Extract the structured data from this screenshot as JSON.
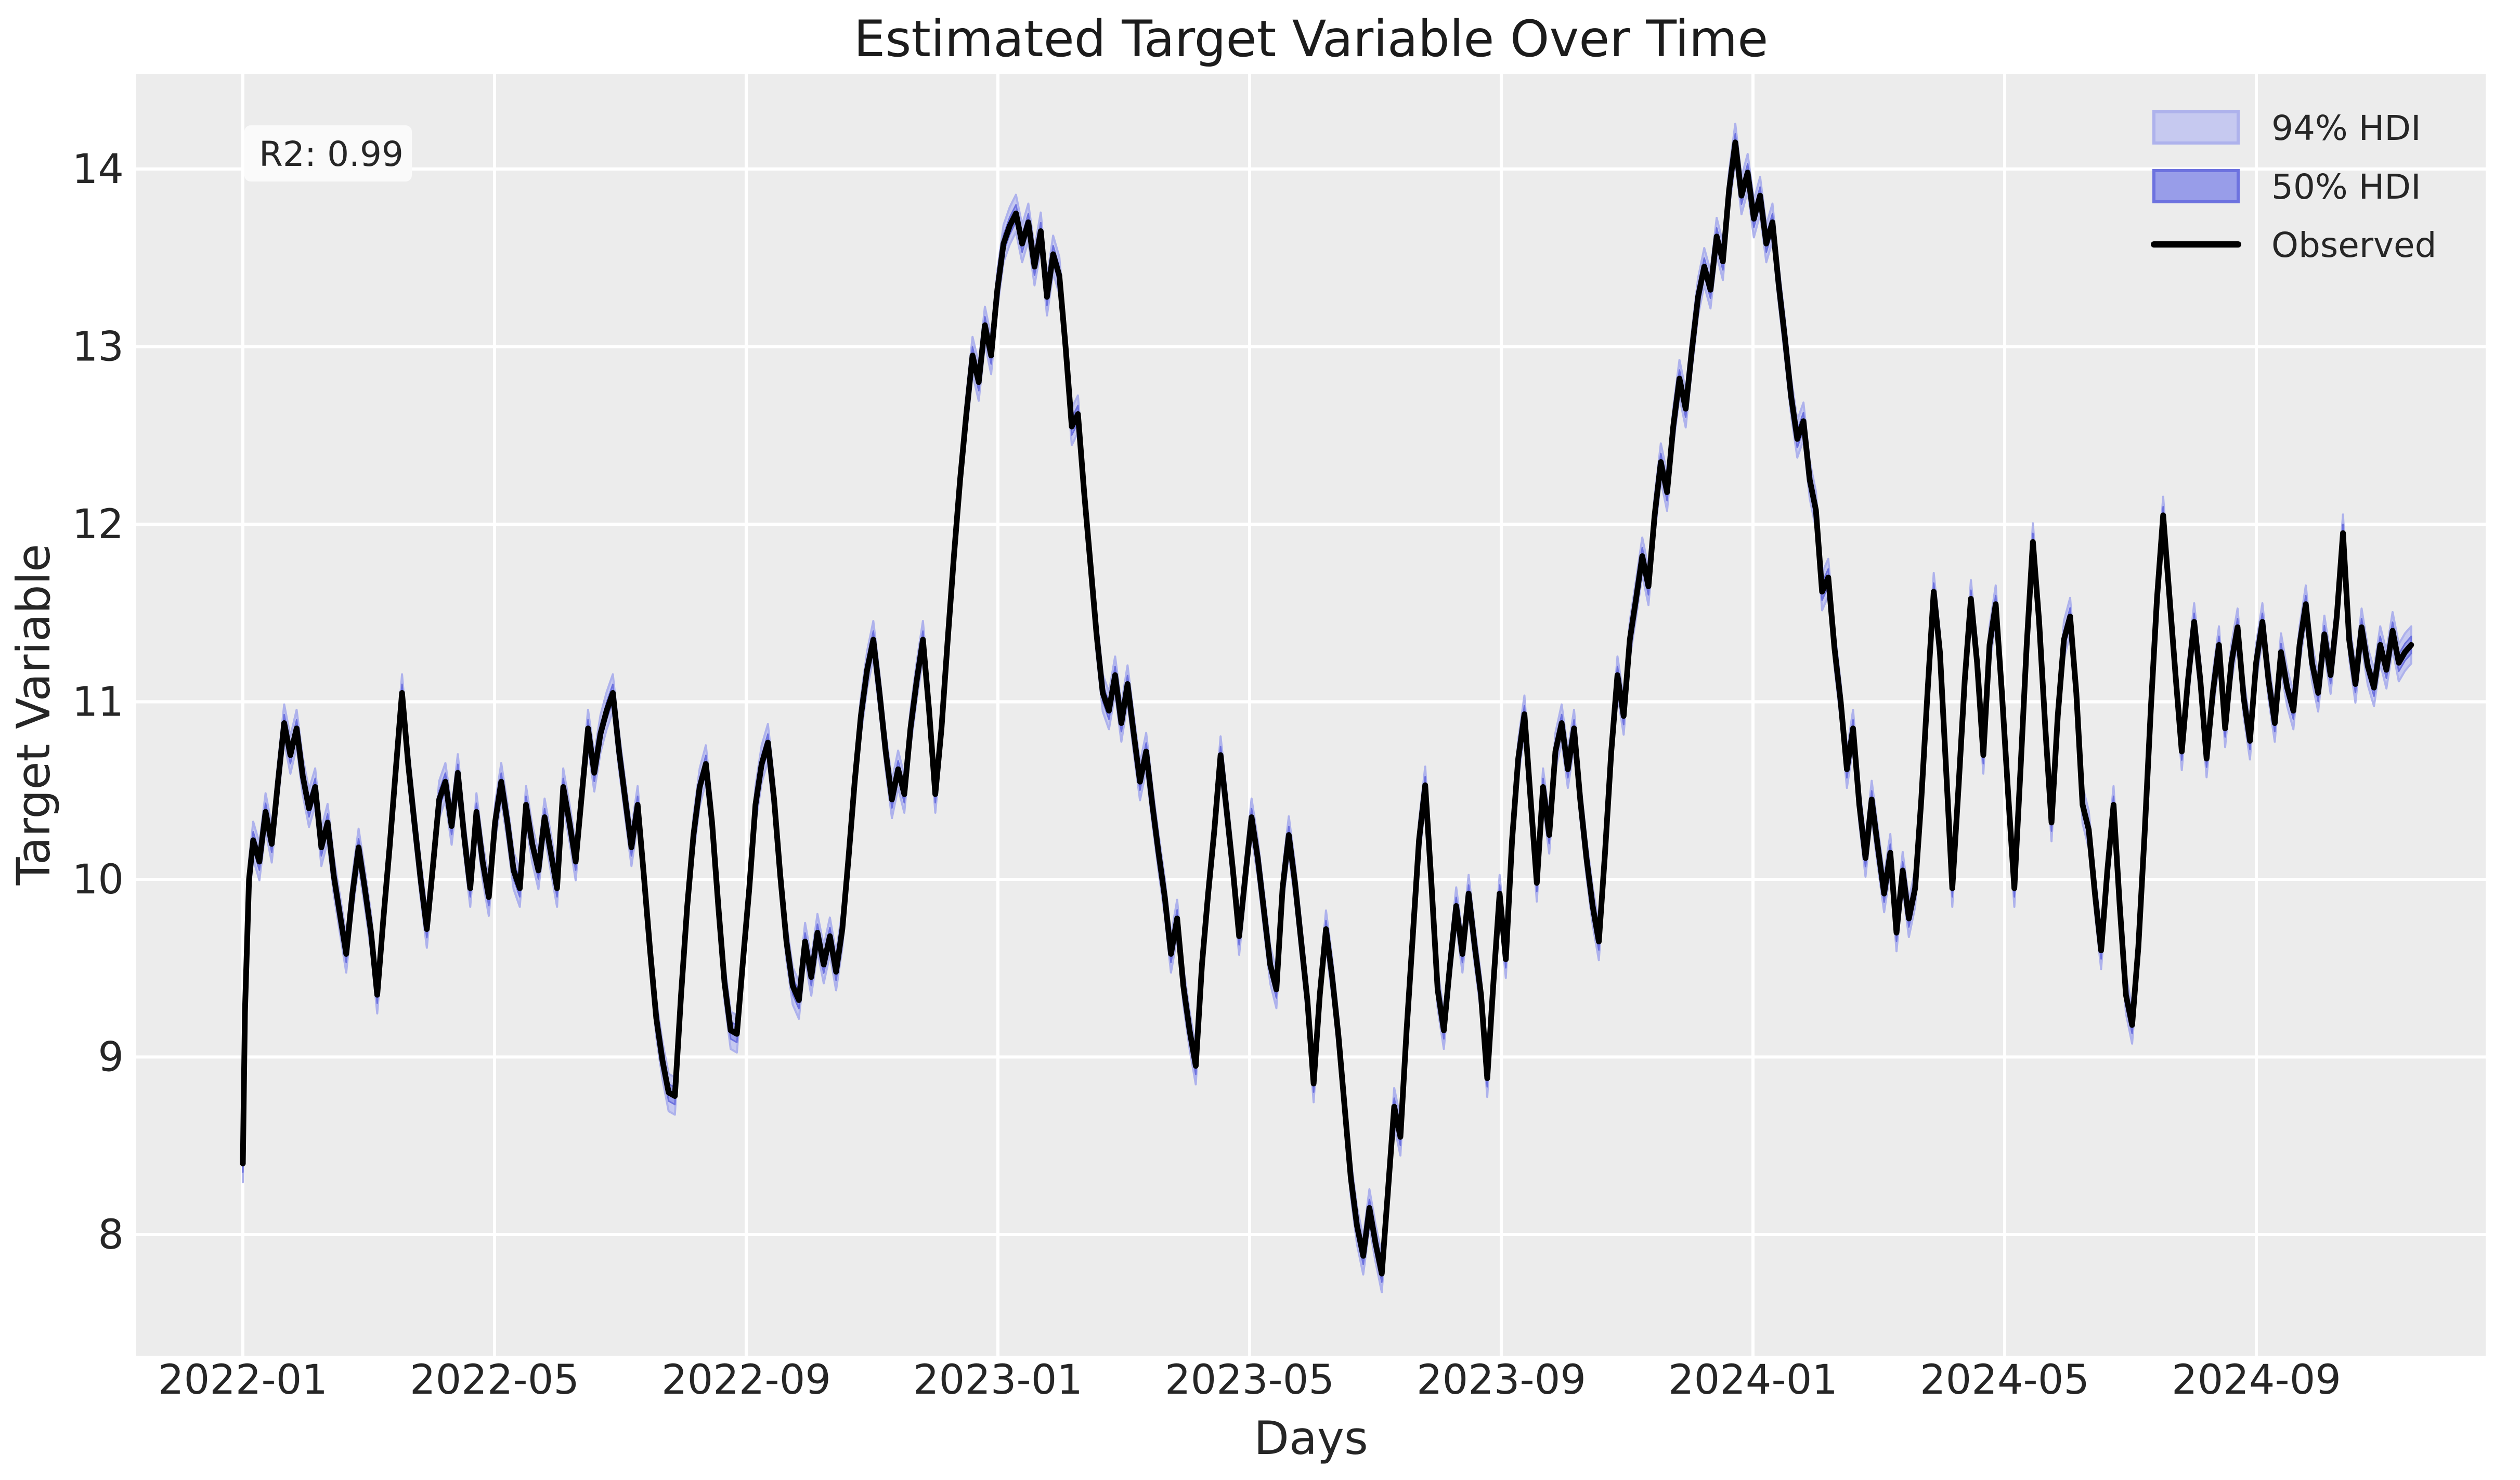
{
  "figure": {
    "title": "Estimated Target Variable Over Time",
    "xlabel": "Days",
    "ylabel": "Target Variable",
    "annotation_text": "R2: 0.99",
    "colors": {
      "figure_background": "#ffffff",
      "plot_background": "#ececec",
      "gridline": "#ffffff",
      "text": "#262626",
      "observed_line": "#000000",
      "hdi94_fill": "#c6c9f0",
      "hdi94_edge": "#aeb2ec",
      "hdi50_fill": "#989de9",
      "hdi50_edge": "#6d72df",
      "annotation_box": "#fafafa"
    }
  },
  "legend": {
    "items": [
      {
        "label": "94% HDI",
        "swatch": "patch"
      },
      {
        "label": "50% HDI",
        "swatch": "patch"
      },
      {
        "label": "Observed",
        "swatch": "line"
      }
    ]
  },
  "chart_data": {
    "type": "line",
    "title": "Estimated Target Variable Over Time",
    "xlabel": "Days",
    "ylabel": "Target Variable",
    "r_squared": 0.99,
    "grid": true,
    "legend_position": "upper right",
    "x_axis": {
      "start_date": "2022-01-01",
      "tick_labels": [
        "2022-01",
        "2022-05",
        "2022-09",
        "2023-01",
        "2023-05",
        "2023-09",
        "2024-01",
        "2024-05",
        "2024-09"
      ],
      "tick_month_offsets": [
        0,
        4,
        8,
        12,
        16,
        20,
        24,
        28,
        32
      ],
      "xlim_days": [
        -52,
        1085
      ]
    },
    "y_axis": {
      "ticks": [
        8,
        9,
        10,
        11,
        12,
        13,
        14
      ],
      "ylim": [
        7.32,
        14.54
      ]
    },
    "hdi_bands": [
      {
        "name": "94% HDI",
        "half_width": 0.105
      },
      {
        "name": "50% HDI",
        "half_width": 0.048
      }
    ],
    "series": {
      "name": "Observed",
      "x_days": [
        0,
        1,
        3,
        5,
        8,
        11,
        14,
        17,
        20,
        23,
        26,
        29,
        32,
        35,
        38,
        41,
        44,
        47,
        50,
        53,
        56,
        59,
        62,
        65,
        68,
        71,
        74,
        77,
        80,
        83,
        86,
        89,
        92,
        95,
        98,
        101,
        104,
        107,
        110,
        113,
        116,
        119,
        122,
        125,
        128,
        131,
        134,
        137,
        140,
        143,
        146,
        149,
        152,
        155,
        158,
        161,
        164,
        167,
        170,
        173,
        176,
        179,
        182,
        185,
        188,
        191,
        194,
        197,
        200,
        203,
        206,
        209,
        212,
        215,
        218,
        221,
        224,
        227,
        230,
        233,
        236,
        239,
        242,
        245,
        248,
        251,
        254,
        257,
        260,
        263,
        266,
        269,
        272,
        275,
        278,
        281,
        284,
        287,
        290,
        293,
        296,
        299,
        302,
        305,
        308,
        311,
        314,
        317,
        320,
        323,
        326,
        329,
        332,
        335,
        338,
        341,
        344,
        347,
        350,
        353,
        356,
        359,
        362,
        365,
        368,
        371,
        374,
        377,
        380,
        383,
        386,
        389,
        392,
        395,
        398,
        401,
        404,
        407,
        410,
        413,
        416,
        419,
        422,
        425,
        428,
        431,
        434,
        437,
        440,
        443,
        446,
        449,
        452,
        455,
        458,
        461,
        464,
        467,
        470,
        473,
        476,
        479,
        482,
        485,
        488,
        491,
        494,
        497,
        500,
        503,
        506,
        509,
        512,
        515,
        518,
        521,
        524,
        527,
        530,
        533,
        536,
        539,
        542,
        545,
        548,
        551,
        554,
        557,
        560,
        563,
        566,
        569,
        572,
        575,
        578,
        581,
        584,
        587,
        590,
        593,
        596,
        599,
        602,
        605,
        608,
        611,
        614,
        617,
        620,
        623,
        626,
        629,
        632,
        635,
        638,
        641,
        644,
        647,
        650,
        653,
        656,
        659,
        662,
        665,
        668,
        671,
        674,
        677,
        680,
        683,
        686,
        689,
        692,
        695,
        698,
        701,
        704,
        707,
        710,
        713,
        716,
        719,
        722,
        725,
        728,
        731,
        734,
        737,
        740,
        743,
        746,
        749,
        752,
        755,
        758,
        761,
        764,
        767,
        770,
        773,
        776,
        779,
        782,
        785,
        788,
        791,
        794,
        797,
        800,
        803,
        806,
        809,
        812,
        815,
        818,
        821,
        824,
        827,
        830,
        833,
        836,
        839,
        842,
        845,
        848,
        851,
        854,
        857,
        860,
        863,
        866,
        869,
        872,
        875,
        878,
        881,
        884,
        887,
        890,
        893,
        896,
        899,
        902,
        905,
        908,
        911,
        914,
        917,
        920,
        923,
        926,
        929,
        932,
        935,
        938,
        941,
        944,
        947,
        950,
        953,
        956,
        959,
        962,
        965,
        968,
        971,
        974,
        977,
        980,
        983,
        986,
        989,
        992,
        995,
        998,
        1001,
        1004,
        1007,
        1010,
        1013,
        1016,
        1019,
        1022,
        1025,
        1028,
        1031,
        1034,
        1037,
        1040,
        1043,
        1046,
        1049
      ],
      "y": [
        8.4,
        9.25,
        10.0,
        10.22,
        10.1,
        10.38,
        10.2,
        10.55,
        10.88,
        10.7,
        10.85,
        10.58,
        10.4,
        10.52,
        10.18,
        10.32,
        10.02,
        9.8,
        9.58,
        9.92,
        10.18,
        9.95,
        9.7,
        9.35,
        9.78,
        10.18,
        10.62,
        11.05,
        10.65,
        10.32,
        10.0,
        9.72,
        10.08,
        10.45,
        10.55,
        10.3,
        10.6,
        10.25,
        9.95,
        10.38,
        10.1,
        9.9,
        10.32,
        10.55,
        10.32,
        10.05,
        9.95,
        10.42,
        10.2,
        10.05,
        10.35,
        10.15,
        9.95,
        10.52,
        10.32,
        10.1,
        10.48,
        10.85,
        10.6,
        10.82,
        10.95,
        11.05,
        10.72,
        10.45,
        10.18,
        10.42,
        10.02,
        9.6,
        9.22,
        8.98,
        8.8,
        8.78,
        9.35,
        9.85,
        10.25,
        10.52,
        10.65,
        10.32,
        9.85,
        9.42,
        9.15,
        9.13,
        9.55,
        9.95,
        10.42,
        10.65,
        10.77,
        10.45,
        10.02,
        9.65,
        9.4,
        9.32,
        9.65,
        9.45,
        9.7,
        9.52,
        9.68,
        9.48,
        9.72,
        10.12,
        10.55,
        10.92,
        11.18,
        11.35,
        11.05,
        10.72,
        10.45,
        10.62,
        10.48,
        10.85,
        11.12,
        11.35,
        10.95,
        10.48,
        10.85,
        11.35,
        11.82,
        12.25,
        12.62,
        12.95,
        12.8,
        13.12,
        12.95,
        13.32,
        13.58,
        13.68,
        13.75,
        13.58,
        13.7,
        13.45,
        13.65,
        13.28,
        13.52,
        13.4,
        13.0,
        12.55,
        12.62,
        12.18,
        11.78,
        11.38,
        11.05,
        10.95,
        11.15,
        10.88,
        11.1,
        10.82,
        10.55,
        10.72,
        10.42,
        10.15,
        9.9,
        9.58,
        9.78,
        9.4,
        9.15,
        8.95,
        9.52,
        9.92,
        10.28,
        10.7,
        10.38,
        10.05,
        9.68,
        10.02,
        10.35,
        10.12,
        9.82,
        9.52,
        9.38,
        9.95,
        10.25,
        9.98,
        9.65,
        9.32,
        8.85,
        9.35,
        9.72,
        9.45,
        9.12,
        8.72,
        8.32,
        8.05,
        7.88,
        8.15,
        7.95,
        7.78,
        8.25,
        8.72,
        8.55,
        9.15,
        9.68,
        10.22,
        10.53,
        9.98,
        9.38,
        9.15,
        9.52,
        9.85,
        9.58,
        9.92,
        9.62,
        9.35,
        8.88,
        9.42,
        9.92,
        9.55,
        10.22,
        10.68,
        10.93,
        10.45,
        9.98,
        10.52,
        10.25,
        10.72,
        10.88,
        10.62,
        10.85,
        10.45,
        10.12,
        9.85,
        9.65,
        10.15,
        10.72,
        11.15,
        10.92,
        11.35,
        11.58,
        11.82,
        11.65,
        12.05,
        12.35,
        12.18,
        12.55,
        12.82,
        12.65,
        12.98,
        13.28,
        13.45,
        13.32,
        13.62,
        13.48,
        13.88,
        14.15,
        13.85,
        13.98,
        13.72,
        13.85,
        13.58,
        13.7,
        13.35,
        13.05,
        12.72,
        12.48,
        12.58,
        12.25,
        12.08,
        11.62,
        11.7,
        11.3,
        11.0,
        10.62,
        10.85,
        10.42,
        10.12,
        10.45,
        10.18,
        9.92,
        10.15,
        9.7,
        10.05,
        9.78,
        9.95,
        10.45,
        11.05,
        11.62,
        11.28,
        10.62,
        9.95,
        10.52,
        11.12,
        11.58,
        11.22,
        10.7,
        11.32,
        11.55,
        11.05,
        10.48,
        9.95,
        10.62,
        11.32,
        11.9,
        11.45,
        10.85,
        10.32,
        10.92,
        11.35,
        11.48,
        11.05,
        10.42,
        10.28,
        9.92,
        9.6,
        10.05,
        10.42,
        9.85,
        9.35,
        9.18,
        9.62,
        10.25,
        10.95,
        11.58,
        12.05,
        11.6,
        11.15,
        10.72,
        11.12,
        11.45,
        11.12,
        10.68,
        11.05,
        11.32,
        10.85,
        11.22,
        11.42,
        11.02,
        10.78,
        11.22,
        11.45,
        11.12,
        10.88,
        11.28,
        11.08,
        10.95,
        11.32,
        11.55,
        11.22,
        11.05,
        11.38,
        11.15,
        11.48,
        11.95,
        11.35,
        11.1,
        11.42,
        11.2,
        11.08,
        11.32,
        11.18,
        11.4,
        11.22,
        11.28,
        11.32
      ]
    }
  }
}
